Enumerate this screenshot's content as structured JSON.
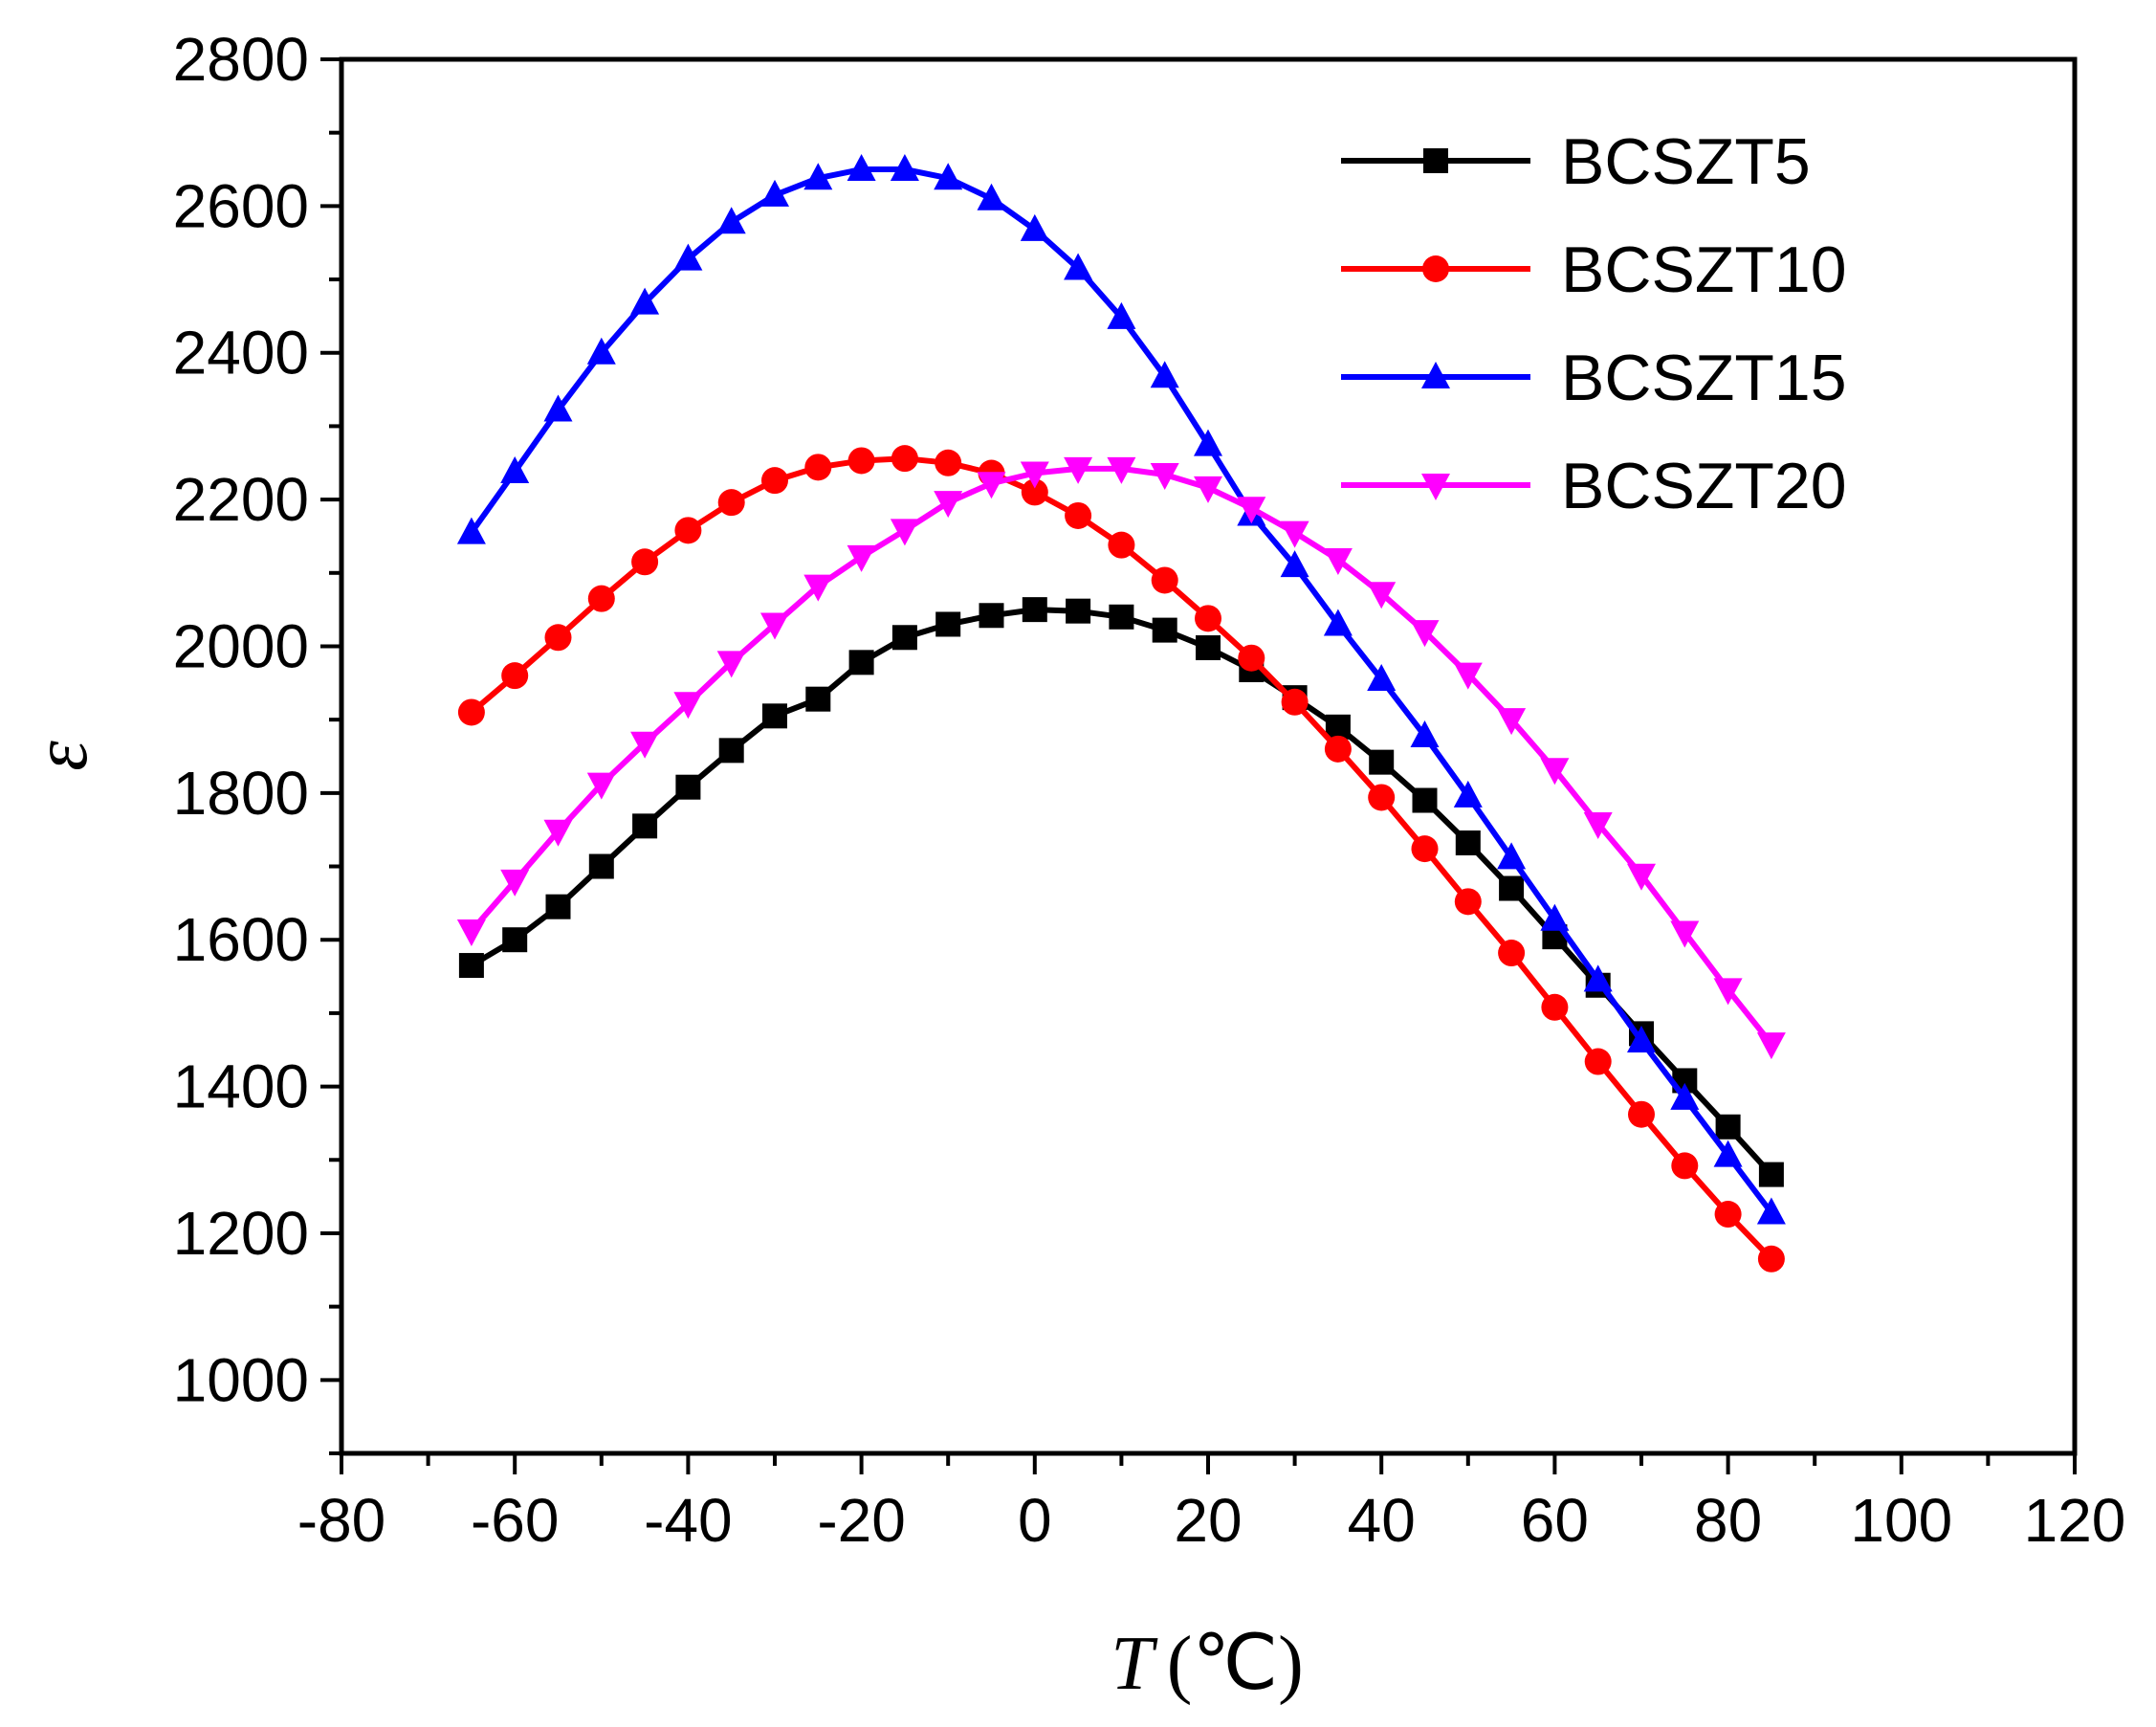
{
  "chart_data": {
    "type": "line",
    "title": "",
    "xlabel": {
      "var": "T",
      "unit": "(℃)"
    },
    "ylabel": "ε",
    "xlim": [
      -80,
      120
    ],
    "ylim": [
      900,
      2800
    ],
    "xticks": [
      -80,
      -60,
      -40,
      -20,
      0,
      20,
      40,
      60,
      80,
      100,
      120
    ],
    "yticks": [
      1000,
      1200,
      1400,
      1600,
      1800,
      2000,
      2200,
      2400,
      2600,
      2800
    ],
    "legend_position": "top-right",
    "x": [
      -65,
      -60,
      -55,
      -50,
      -45,
      -40,
      -35,
      -30,
      -25,
      -20,
      -15,
      -10,
      -5,
      0,
      5,
      10,
      15,
      20,
      25,
      30,
      35,
      40,
      45,
      50,
      55,
      60,
      65,
      70,
      75,
      80,
      85
    ],
    "series": [
      {
        "name": "BCSZT5",
        "color": "#000000",
        "marker": "square",
        "values": [
          1565,
          1600,
          1645,
          1700,
          1755,
          1808,
          1858,
          1905,
          1928,
          1978,
          2012,
          2030,
          2042,
          2050,
          2048,
          2040,
          2022,
          1998,
          1968,
          1930,
          1890,
          1842,
          1790,
          1732,
          1670,
          1604,
          1538,
          1472,
          1408,
          1345,
          1280
        ]
      },
      {
        "name": "BCSZT10",
        "color": "#ff0000",
        "marker": "circle",
        "values": [
          1910,
          1960,
          2012,
          2065,
          2115,
          2158,
          2196,
          2226,
          2244,
          2253,
          2256,
          2250,
          2236,
          2210,
          2178,
          2138,
          2090,
          2038,
          1984,
          1924,
          1860,
          1794,
          1724,
          1652,
          1582,
          1508,
          1434,
          1362,
          1292,
          1226,
          1165
        ]
      },
      {
        "name": "BCSZT15",
        "color": "#0000ff",
        "marker": "triangle-up",
        "values": [
          2155,
          2238,
          2322,
          2400,
          2468,
          2528,
          2578,
          2615,
          2638,
          2650,
          2650,
          2638,
          2610,
          2568,
          2515,
          2448,
          2368,
          2275,
          2180,
          2110,
          2030,
          1955,
          1878,
          1796,
          1712,
          1628,
          1545,
          1462,
          1384,
          1306,
          1228
        ]
      },
      {
        "name": "BCSZT20",
        "color": "#ff00ff",
        "marker": "triangle-down",
        "values": [
          1612,
          1680,
          1748,
          1812,
          1868,
          1922,
          1978,
          2030,
          2082,
          2122,
          2158,
          2196,
          2222,
          2236,
          2242,
          2242,
          2234,
          2216,
          2188,
          2155,
          2118,
          2072,
          2020,
          1962,
          1900,
          1832,
          1758,
          1688,
          1610,
          1532,
          1458
        ]
      }
    ]
  }
}
